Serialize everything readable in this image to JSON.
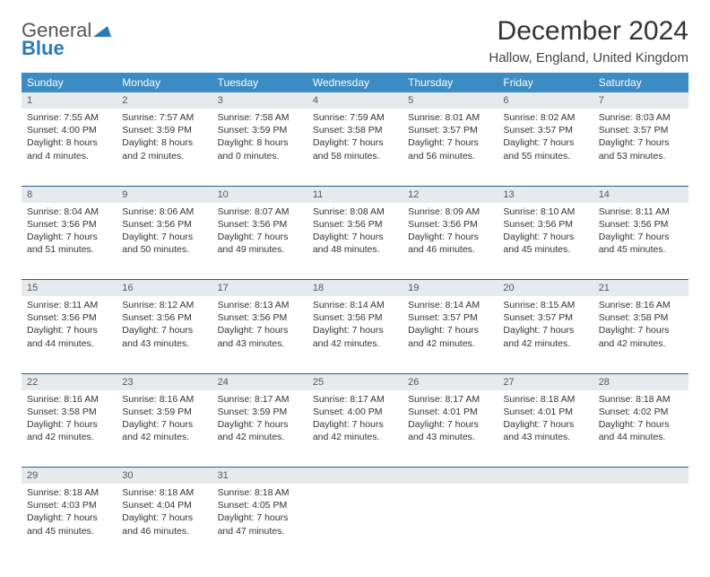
{
  "logo": {
    "word1": "General",
    "word2": "Blue"
  },
  "title": "December 2024",
  "location": "Hallow, England, United Kingdom",
  "colors": {
    "header_bg": "#3b8bc4",
    "header_text": "#ffffff",
    "daynum_bg": "#e6eaed",
    "row_divider": "#2a5d87",
    "logo_blue": "#2a7ab8",
    "body_text": "#333333"
  },
  "day_headers": [
    "Sunday",
    "Monday",
    "Tuesday",
    "Wednesday",
    "Thursday",
    "Friday",
    "Saturday"
  ],
  "weeks": [
    {
      "nums": [
        "1",
        "2",
        "3",
        "4",
        "5",
        "6",
        "7"
      ],
      "cells": [
        {
          "sunrise": "Sunrise: 7:55 AM",
          "sunset": "Sunset: 4:00 PM",
          "day1": "Daylight: 8 hours",
          "day2": "and 4 minutes."
        },
        {
          "sunrise": "Sunrise: 7:57 AM",
          "sunset": "Sunset: 3:59 PM",
          "day1": "Daylight: 8 hours",
          "day2": "and 2 minutes."
        },
        {
          "sunrise": "Sunrise: 7:58 AM",
          "sunset": "Sunset: 3:59 PM",
          "day1": "Daylight: 8 hours",
          "day2": "and 0 minutes."
        },
        {
          "sunrise": "Sunrise: 7:59 AM",
          "sunset": "Sunset: 3:58 PM",
          "day1": "Daylight: 7 hours",
          "day2": "and 58 minutes."
        },
        {
          "sunrise": "Sunrise: 8:01 AM",
          "sunset": "Sunset: 3:57 PM",
          "day1": "Daylight: 7 hours",
          "day2": "and 56 minutes."
        },
        {
          "sunrise": "Sunrise: 8:02 AM",
          "sunset": "Sunset: 3:57 PM",
          "day1": "Daylight: 7 hours",
          "day2": "and 55 minutes."
        },
        {
          "sunrise": "Sunrise: 8:03 AM",
          "sunset": "Sunset: 3:57 PM",
          "day1": "Daylight: 7 hours",
          "day2": "and 53 minutes."
        }
      ]
    },
    {
      "nums": [
        "8",
        "9",
        "10",
        "11",
        "12",
        "13",
        "14"
      ],
      "cells": [
        {
          "sunrise": "Sunrise: 8:04 AM",
          "sunset": "Sunset: 3:56 PM",
          "day1": "Daylight: 7 hours",
          "day2": "and 51 minutes."
        },
        {
          "sunrise": "Sunrise: 8:06 AM",
          "sunset": "Sunset: 3:56 PM",
          "day1": "Daylight: 7 hours",
          "day2": "and 50 minutes."
        },
        {
          "sunrise": "Sunrise: 8:07 AM",
          "sunset": "Sunset: 3:56 PM",
          "day1": "Daylight: 7 hours",
          "day2": "and 49 minutes."
        },
        {
          "sunrise": "Sunrise: 8:08 AM",
          "sunset": "Sunset: 3:56 PM",
          "day1": "Daylight: 7 hours",
          "day2": "and 48 minutes."
        },
        {
          "sunrise": "Sunrise: 8:09 AM",
          "sunset": "Sunset: 3:56 PM",
          "day1": "Daylight: 7 hours",
          "day2": "and 46 minutes."
        },
        {
          "sunrise": "Sunrise: 8:10 AM",
          "sunset": "Sunset: 3:56 PM",
          "day1": "Daylight: 7 hours",
          "day2": "and 45 minutes."
        },
        {
          "sunrise": "Sunrise: 8:11 AM",
          "sunset": "Sunset: 3:56 PM",
          "day1": "Daylight: 7 hours",
          "day2": "and 45 minutes."
        }
      ]
    },
    {
      "nums": [
        "15",
        "16",
        "17",
        "18",
        "19",
        "20",
        "21"
      ],
      "cells": [
        {
          "sunrise": "Sunrise: 8:11 AM",
          "sunset": "Sunset: 3:56 PM",
          "day1": "Daylight: 7 hours",
          "day2": "and 44 minutes."
        },
        {
          "sunrise": "Sunrise: 8:12 AM",
          "sunset": "Sunset: 3:56 PM",
          "day1": "Daylight: 7 hours",
          "day2": "and 43 minutes."
        },
        {
          "sunrise": "Sunrise: 8:13 AM",
          "sunset": "Sunset: 3:56 PM",
          "day1": "Daylight: 7 hours",
          "day2": "and 43 minutes."
        },
        {
          "sunrise": "Sunrise: 8:14 AM",
          "sunset": "Sunset: 3:56 PM",
          "day1": "Daylight: 7 hours",
          "day2": "and 42 minutes."
        },
        {
          "sunrise": "Sunrise: 8:14 AM",
          "sunset": "Sunset: 3:57 PM",
          "day1": "Daylight: 7 hours",
          "day2": "and 42 minutes."
        },
        {
          "sunrise": "Sunrise: 8:15 AM",
          "sunset": "Sunset: 3:57 PM",
          "day1": "Daylight: 7 hours",
          "day2": "and 42 minutes."
        },
        {
          "sunrise": "Sunrise: 8:16 AM",
          "sunset": "Sunset: 3:58 PM",
          "day1": "Daylight: 7 hours",
          "day2": "and 42 minutes."
        }
      ]
    },
    {
      "nums": [
        "22",
        "23",
        "24",
        "25",
        "26",
        "27",
        "28"
      ],
      "cells": [
        {
          "sunrise": "Sunrise: 8:16 AM",
          "sunset": "Sunset: 3:58 PM",
          "day1": "Daylight: 7 hours",
          "day2": "and 42 minutes."
        },
        {
          "sunrise": "Sunrise: 8:16 AM",
          "sunset": "Sunset: 3:59 PM",
          "day1": "Daylight: 7 hours",
          "day2": "and 42 minutes."
        },
        {
          "sunrise": "Sunrise: 8:17 AM",
          "sunset": "Sunset: 3:59 PM",
          "day1": "Daylight: 7 hours",
          "day2": "and 42 minutes."
        },
        {
          "sunrise": "Sunrise: 8:17 AM",
          "sunset": "Sunset: 4:00 PM",
          "day1": "Daylight: 7 hours",
          "day2": "and 42 minutes."
        },
        {
          "sunrise": "Sunrise: 8:17 AM",
          "sunset": "Sunset: 4:01 PM",
          "day1": "Daylight: 7 hours",
          "day2": "and 43 minutes."
        },
        {
          "sunrise": "Sunrise: 8:18 AM",
          "sunset": "Sunset: 4:01 PM",
          "day1": "Daylight: 7 hours",
          "day2": "and 43 minutes."
        },
        {
          "sunrise": "Sunrise: 8:18 AM",
          "sunset": "Sunset: 4:02 PM",
          "day1": "Daylight: 7 hours",
          "day2": "and 44 minutes."
        }
      ]
    },
    {
      "nums": [
        "29",
        "30",
        "31",
        "",
        "",
        "",
        ""
      ],
      "cells": [
        {
          "sunrise": "Sunrise: 8:18 AM",
          "sunset": "Sunset: 4:03 PM",
          "day1": "Daylight: 7 hours",
          "day2": "and 45 minutes."
        },
        {
          "sunrise": "Sunrise: 8:18 AM",
          "sunset": "Sunset: 4:04 PM",
          "day1": "Daylight: 7 hours",
          "day2": "and 46 minutes."
        },
        {
          "sunrise": "Sunrise: 8:18 AM",
          "sunset": "Sunset: 4:05 PM",
          "day1": "Daylight: 7 hours",
          "day2": "and 47 minutes."
        },
        null,
        null,
        null,
        null
      ]
    }
  ]
}
